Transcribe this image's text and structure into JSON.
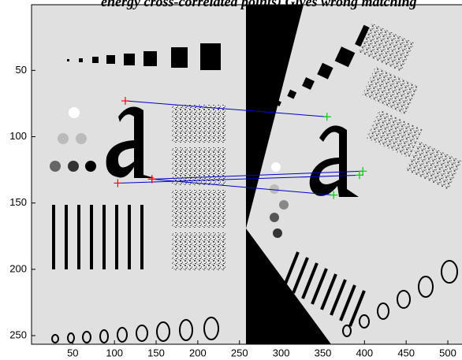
{
  "chart_data": {
    "type": "matches",
    "title": "energy cross-correlated points) Gives wrong matching",
    "xlim": [
      0.5,
      517
    ],
    "ylim": [
      0.5,
      256.5
    ],
    "y_reversed": true,
    "xticks": [
      50,
      100,
      150,
      200,
      250,
      300,
      350,
      400,
      450,
      500
    ],
    "yticks": [
      50,
      100,
      150,
      200,
      250
    ],
    "left_color": "#ff0000",
    "right_color": "#00cc00",
    "line_color": "#0000cc",
    "matches": [
      {
        "x": [
          113,
          355
        ],
        "y": [
          73,
          85
        ]
      },
      {
        "x": [
          145,
          398
        ],
        "y": [
          132,
          126
        ]
      },
      {
        "x": [
          104,
          394
        ],
        "y": [
          135,
          129
        ]
      },
      {
        "x": [
          145,
          363
        ],
        "y": [
          132,
          144
        ]
      }
    ]
  }
}
